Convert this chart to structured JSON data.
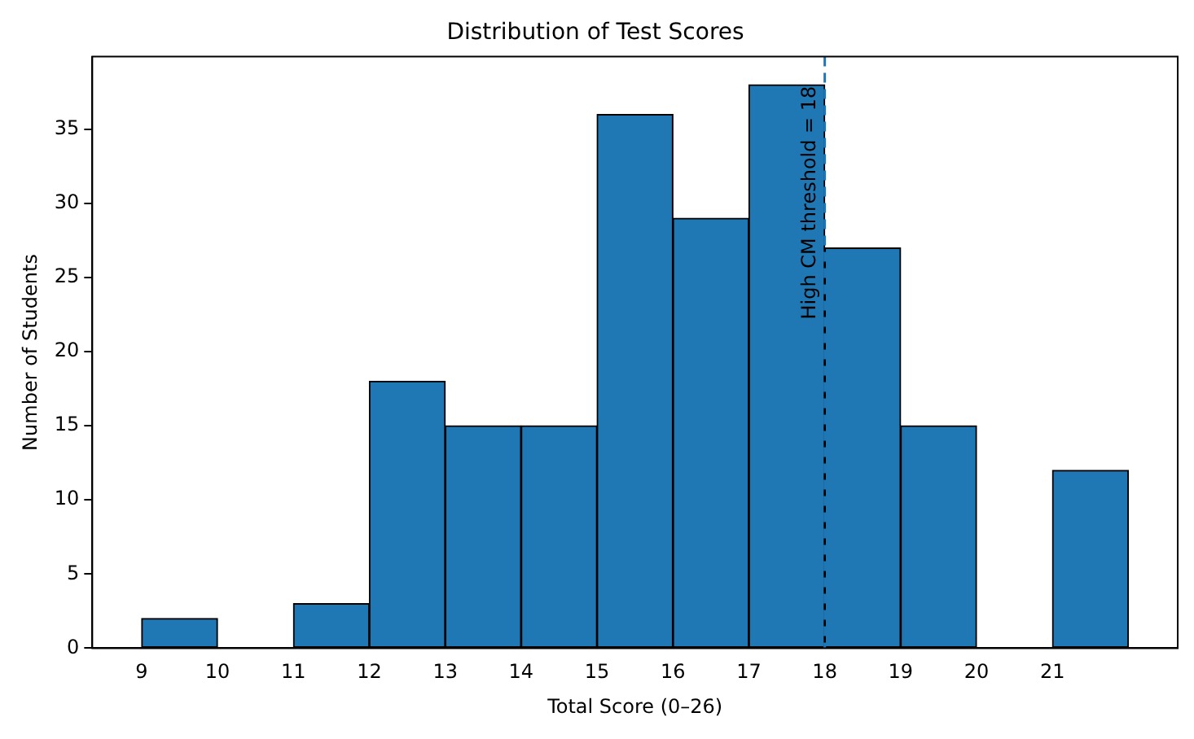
{
  "chart_data": {
    "type": "histogram",
    "title": "Distribution of Test Scores",
    "xlabel": "Total Score (0–26)",
    "ylabel": "Number of Students",
    "bins": [
      9,
      10,
      11,
      12,
      13,
      14,
      15,
      16,
      17,
      18,
      19,
      20,
      21,
      22
    ],
    "values": [
      2,
      0,
      3,
      18,
      15,
      15,
      36,
      29,
      38,
      27,
      15,
      0,
      12
    ],
    "color": "#1f77b4",
    "xlim": [
      8.35,
      22.65
    ],
    "xticks": [
      9,
      10,
      11,
      12,
      13,
      14,
      15,
      16,
      17,
      18,
      19,
      20,
      21
    ],
    "ylim": [
      0,
      39.9
    ],
    "yticks": [
      0,
      5,
      10,
      15,
      20,
      25,
      30,
      35
    ],
    "ref_lines": [
      {
        "axis": "x",
        "value": 18,
        "label": "High CM threshold = 18",
        "color": "#1f77b4",
        "line_style": "dashed"
      }
    ],
    "grid": false,
    "legend": false
  }
}
